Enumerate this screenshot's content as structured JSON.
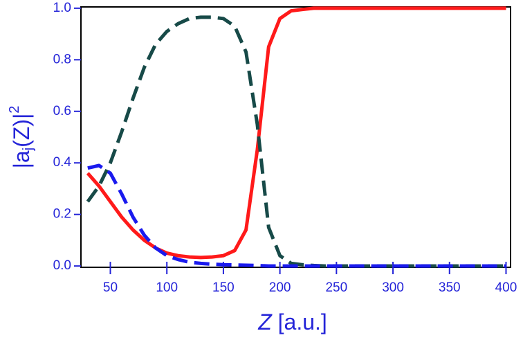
{
  "chart_data": {
    "type": "line",
    "xlabel": [
      "Z",
      "[a.u.]"
    ],
    "ylabel": [
      "|a",
      "j",
      "(Z)|",
      "2"
    ],
    "x": [
      30,
      40,
      50,
      60,
      70,
      80,
      90,
      100,
      110,
      120,
      130,
      140,
      150,
      160,
      170,
      180,
      190,
      200,
      210,
      220,
      230,
      240,
      250,
      260,
      270,
      280,
      290,
      300,
      310,
      320,
      330,
      340,
      350,
      360,
      370,
      380,
      390,
      400
    ],
    "series": [
      {
        "color": "#ff1a1a",
        "dashed": false,
        "values": [
          0.36,
          0.31,
          0.25,
          0.19,
          0.14,
          0.1,
          0.07,
          0.05,
          0.04,
          0.035,
          0.033,
          0.035,
          0.04,
          0.06,
          0.14,
          0.45,
          0.85,
          0.96,
          0.99,
          0.995,
          1,
          1,
          1,
          1,
          1,
          1,
          1,
          1,
          1,
          1,
          1,
          1,
          1,
          1,
          1,
          1,
          1,
          1
        ]
      },
      {
        "color": "#174a48",
        "dashed": true,
        "values": [
          0.25,
          0.31,
          0.4,
          0.52,
          0.65,
          0.77,
          0.86,
          0.91,
          0.94,
          0.96,
          0.965,
          0.965,
          0.96,
          0.93,
          0.83,
          0.55,
          0.15,
          0.04,
          0.01,
          0.005,
          0.002,
          0,
          0,
          0,
          0,
          0,
          0,
          0,
          0,
          0,
          0,
          0,
          0,
          0,
          0,
          0,
          0,
          0
        ]
      },
      {
        "color": "#1a1aee",
        "dashed": true,
        "values": [
          0.38,
          0.39,
          0.36,
          0.28,
          0.19,
          0.12,
          0.07,
          0.04,
          0.025,
          0.015,
          0.01,
          0.007,
          0.005,
          0.004,
          0.003,
          0.002,
          0,
          0,
          0,
          0,
          0,
          0,
          0,
          0,
          0,
          0,
          0,
          0,
          0,
          0,
          0,
          0,
          0,
          0,
          0,
          0,
          0,
          0
        ]
      }
    ],
    "xlim": [
      24,
      404
    ],
    "ylim": [
      -0.005,
      1.005
    ],
    "xticks": [
      50,
      100,
      150,
      200,
      250,
      300,
      350,
      400
    ],
    "yticks": [
      {
        "value": 0,
        "label": "0.0"
      },
      {
        "value": 0.2,
        "label": "0.2"
      },
      {
        "value": 0.4,
        "label": "0.4"
      },
      {
        "value": 0.6,
        "label": "0.6"
      },
      {
        "value": 0.8,
        "label": "0.8"
      },
      {
        "value": 1,
        "label": "1.0"
      }
    ]
  }
}
